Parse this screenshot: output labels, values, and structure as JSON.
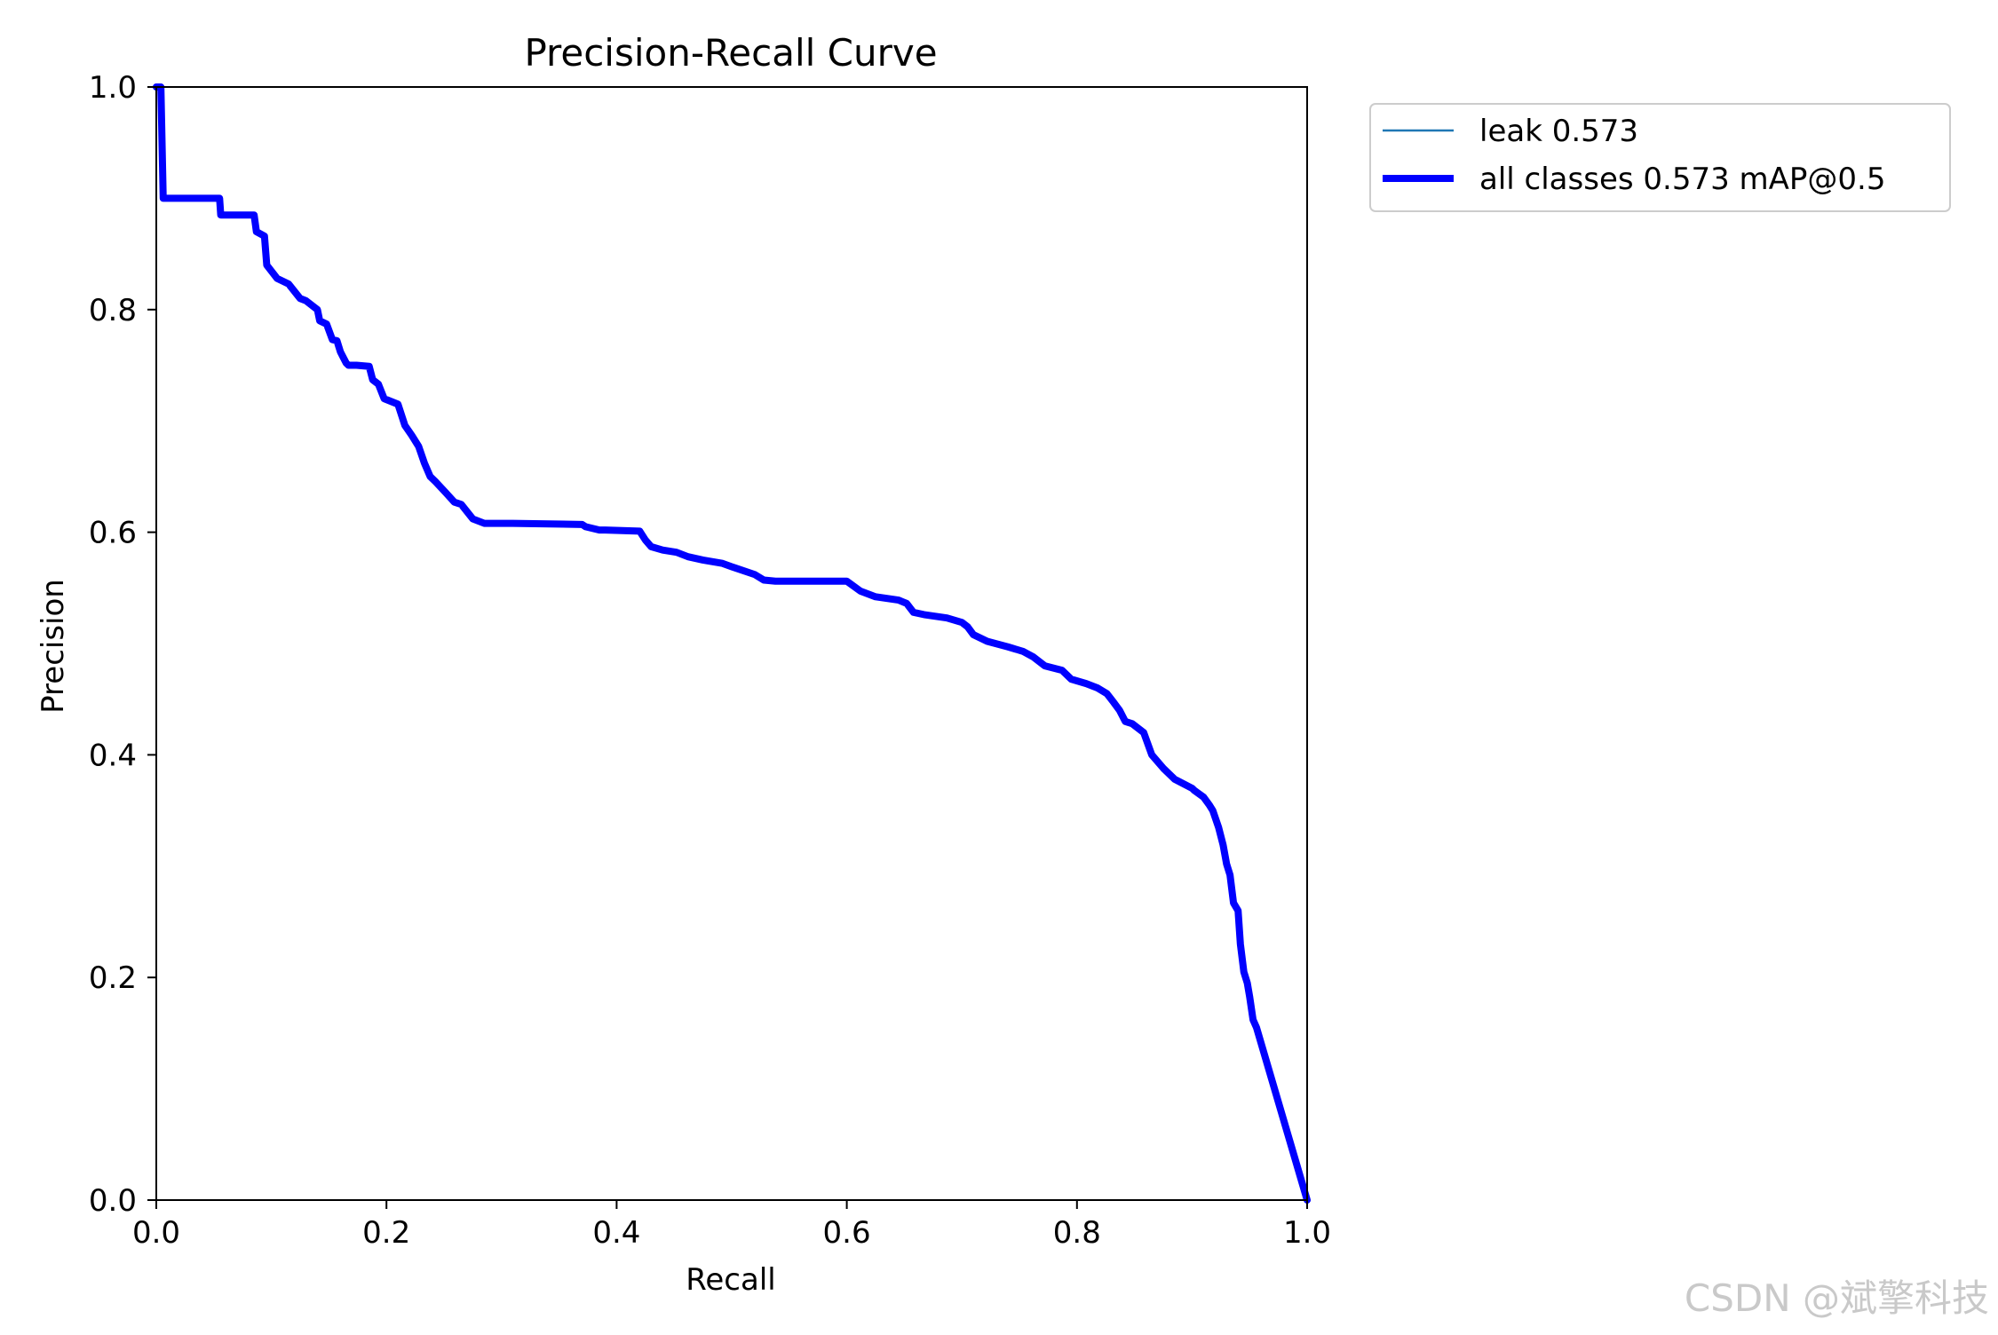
{
  "chart_data": {
    "type": "line",
    "title": "Precision-Recall Curve",
    "xlabel": "Recall",
    "ylabel": "Precision",
    "xlim": [
      0,
      1
    ],
    "ylim": [
      0,
      1
    ],
    "xticks": [
      "0.0",
      "0.2",
      "0.4",
      "0.6",
      "0.8",
      "1.0"
    ],
    "yticks": [
      "0.0",
      "0.2",
      "0.4",
      "0.6",
      "0.8",
      "1.0"
    ],
    "grid": false,
    "legend_position": "outside-top-right",
    "series": [
      {
        "name": "leak 0.573",
        "color": "#1f77b4",
        "x": [
          0.0,
          0.004,
          0.006,
          0.055,
          0.056,
          0.085,
          0.087,
          0.094,
          0.096,
          0.105,
          0.115,
          0.125,
          0.13,
          0.14,
          0.142,
          0.148,
          0.153,
          0.157,
          0.16,
          0.165,
          0.167,
          0.17,
          0.174,
          0.185,
          0.188,
          0.193,
          0.198,
          0.21,
          0.216,
          0.222,
          0.228,
          0.233,
          0.238,
          0.243,
          0.252,
          0.259,
          0.265,
          0.275,
          0.285,
          0.293,
          0.303,
          0.31,
          0.31,
          0.37,
          0.373,
          0.385,
          0.39,
          0.39,
          0.42,
          0.425,
          0.43,
          0.44,
          0.452,
          0.462,
          0.475,
          0.492,
          0.5,
          0.52,
          0.528,
          0.538,
          0.6,
          0.612,
          0.625,
          0.645,
          0.652,
          0.658,
          0.667,
          0.687,
          0.7,
          0.705,
          0.71,
          0.722,
          0.74,
          0.753,
          0.762,
          0.772,
          0.787,
          0.795,
          0.808,
          0.818,
          0.826,
          0.832,
          0.837,
          0.842,
          0.848,
          0.858,
          0.865,
          0.875,
          0.885,
          0.9,
          0.902,
          0.91,
          0.915,
          0.918,
          0.923,
          0.927,
          0.93,
          0.933,
          0.936,
          0.94,
          0.942,
          0.945,
          0.948,
          0.95,
          0.953,
          0.956,
          1.0
        ],
        "y": [
          1.0,
          1.0,
          0.9,
          0.9,
          0.885,
          0.885,
          0.87,
          0.866,
          0.84,
          0.828,
          0.823,
          0.81,
          0.808,
          0.8,
          0.79,
          0.787,
          0.773,
          0.772,
          0.762,
          0.752,
          0.75,
          0.75,
          0.75,
          0.749,
          0.737,
          0.733,
          0.72,
          0.715,
          0.696,
          0.687,
          0.677,
          0.662,
          0.65,
          0.645,
          0.635,
          0.627,
          0.625,
          0.612,
          0.608,
          0.608,
          0.608,
          0.608,
          0.608,
          0.607,
          0.605,
          0.602,
          0.602,
          0.602,
          0.601,
          0.593,
          0.587,
          0.584,
          0.582,
          0.578,
          0.575,
          0.572,
          0.569,
          0.562,
          0.557,
          0.556,
          0.556,
          0.547,
          0.542,
          0.539,
          0.536,
          0.528,
          0.526,
          0.523,
          0.519,
          0.515,
          0.508,
          0.502,
          0.497,
          0.493,
          0.488,
          0.48,
          0.476,
          0.468,
          0.464,
          0.46,
          0.455,
          0.447,
          0.44,
          0.43,
          0.428,
          0.42,
          0.4,
          0.388,
          0.378,
          0.37,
          0.368,
          0.362,
          0.355,
          0.35,
          0.335,
          0.319,
          0.302,
          0.292,
          0.267,
          0.26,
          0.23,
          0.205,
          0.195,
          0.183,
          0.162,
          0.155,
          0.0
        ]
      },
      {
        "name": "all classes 0.573 mAP@0.5",
        "color": "#0000ff",
        "x": [
          0.0,
          0.004,
          0.006,
          0.055,
          0.056,
          0.085,
          0.087,
          0.094,
          0.096,
          0.105,
          0.115,
          0.125,
          0.13,
          0.14,
          0.142,
          0.148,
          0.153,
          0.157,
          0.16,
          0.165,
          0.167,
          0.17,
          0.174,
          0.185,
          0.188,
          0.193,
          0.198,
          0.21,
          0.216,
          0.222,
          0.228,
          0.233,
          0.238,
          0.243,
          0.252,
          0.259,
          0.265,
          0.275,
          0.285,
          0.293,
          0.303,
          0.31,
          0.31,
          0.37,
          0.373,
          0.385,
          0.39,
          0.39,
          0.42,
          0.425,
          0.43,
          0.44,
          0.452,
          0.462,
          0.475,
          0.492,
          0.5,
          0.52,
          0.528,
          0.538,
          0.6,
          0.612,
          0.625,
          0.645,
          0.652,
          0.658,
          0.667,
          0.687,
          0.7,
          0.705,
          0.71,
          0.722,
          0.74,
          0.753,
          0.762,
          0.772,
          0.787,
          0.795,
          0.808,
          0.818,
          0.826,
          0.832,
          0.837,
          0.842,
          0.848,
          0.858,
          0.865,
          0.875,
          0.885,
          0.9,
          0.902,
          0.91,
          0.915,
          0.918,
          0.923,
          0.927,
          0.93,
          0.933,
          0.936,
          0.94,
          0.942,
          0.945,
          0.948,
          0.95,
          0.953,
          0.956,
          1.0
        ],
        "y": [
          1.0,
          1.0,
          0.9,
          0.9,
          0.885,
          0.885,
          0.87,
          0.866,
          0.84,
          0.828,
          0.823,
          0.81,
          0.808,
          0.8,
          0.79,
          0.787,
          0.773,
          0.772,
          0.762,
          0.752,
          0.75,
          0.75,
          0.75,
          0.749,
          0.737,
          0.733,
          0.72,
          0.715,
          0.696,
          0.687,
          0.677,
          0.662,
          0.65,
          0.645,
          0.635,
          0.627,
          0.625,
          0.612,
          0.608,
          0.608,
          0.608,
          0.608,
          0.608,
          0.607,
          0.605,
          0.602,
          0.602,
          0.602,
          0.601,
          0.593,
          0.587,
          0.584,
          0.582,
          0.578,
          0.575,
          0.572,
          0.569,
          0.562,
          0.557,
          0.556,
          0.556,
          0.547,
          0.542,
          0.539,
          0.536,
          0.528,
          0.526,
          0.523,
          0.519,
          0.515,
          0.508,
          0.502,
          0.497,
          0.493,
          0.488,
          0.48,
          0.476,
          0.468,
          0.464,
          0.46,
          0.455,
          0.447,
          0.44,
          0.43,
          0.428,
          0.42,
          0.4,
          0.388,
          0.378,
          0.37,
          0.368,
          0.362,
          0.355,
          0.35,
          0.335,
          0.319,
          0.302,
          0.292,
          0.267,
          0.26,
          0.23,
          0.205,
          0.195,
          0.183,
          0.162,
          0.155,
          0.0
        ]
      }
    ]
  },
  "watermark": "CSDN @斌擎科技"
}
